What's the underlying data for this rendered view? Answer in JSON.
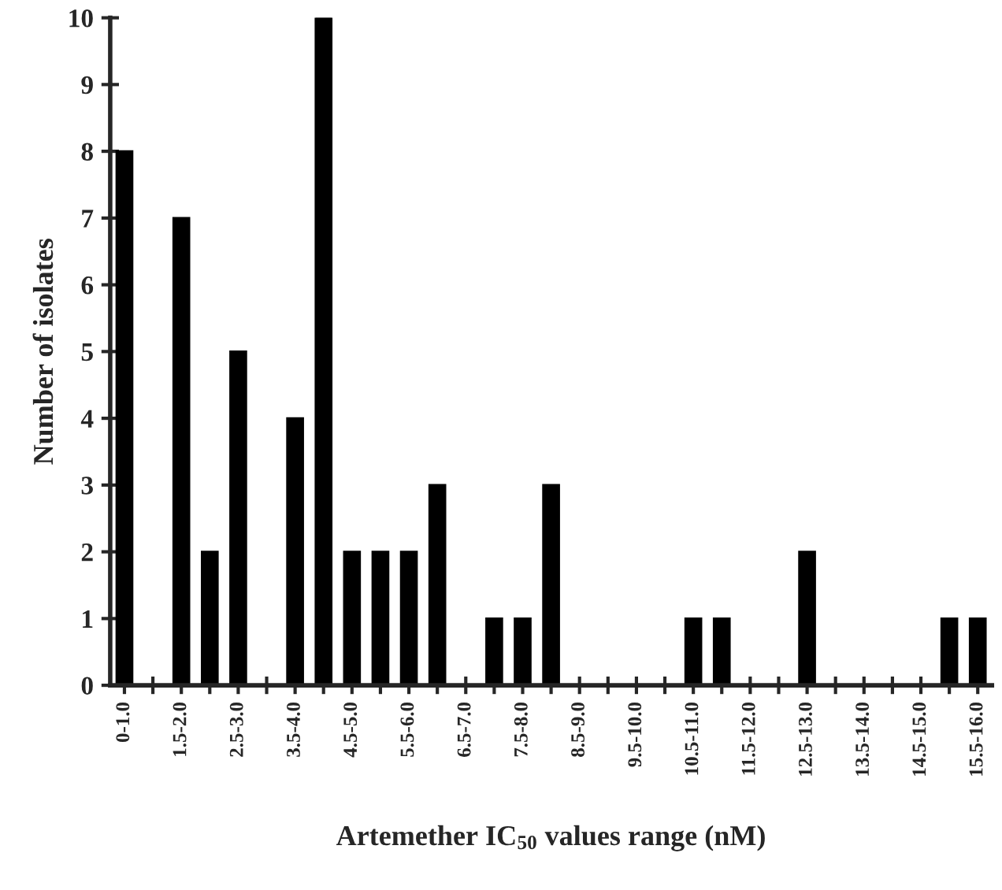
{
  "chart_data": {
    "type": "bar",
    "xlabel": "Artemether IC$_{50}$ values range (nM)",
    "ylabel": "Number of isolates",
    "categories": [
      "0-1.0",
      null,
      "1.5-2.0",
      null,
      "2.5-3.0",
      null,
      "3.5-4.0",
      null,
      "4.5-5.0",
      null,
      "5.5-6.0",
      null,
      "6.5-7.0",
      null,
      "7.5-8.0",
      null,
      "8.5-9.0",
      null,
      "9.5-10.0",
      null,
      "10.5-11.0",
      null,
      "11.5-12.0",
      null,
      "12.5-13.0",
      null,
      "13.5-14.0",
      null,
      "14.5-15.0",
      null,
      "15.5-16.0"
    ],
    "values": [
      8,
      0,
      7,
      2,
      5,
      0,
      4,
      10,
      2,
      2,
      2,
      3,
      0,
      1,
      1,
      3,
      0,
      0,
      0,
      0,
      1,
      1,
      0,
      0,
      2,
      0,
      0,
      0,
      0,
      1,
      1
    ],
    "color": "#000000",
    "ylim": [
      0,
      10
    ],
    "yticks": [
      0,
      1,
      2,
      3,
      4,
      5,
      6,
      7,
      8,
      9,
      10
    ],
    "grid": false,
    "legend": false
  }
}
